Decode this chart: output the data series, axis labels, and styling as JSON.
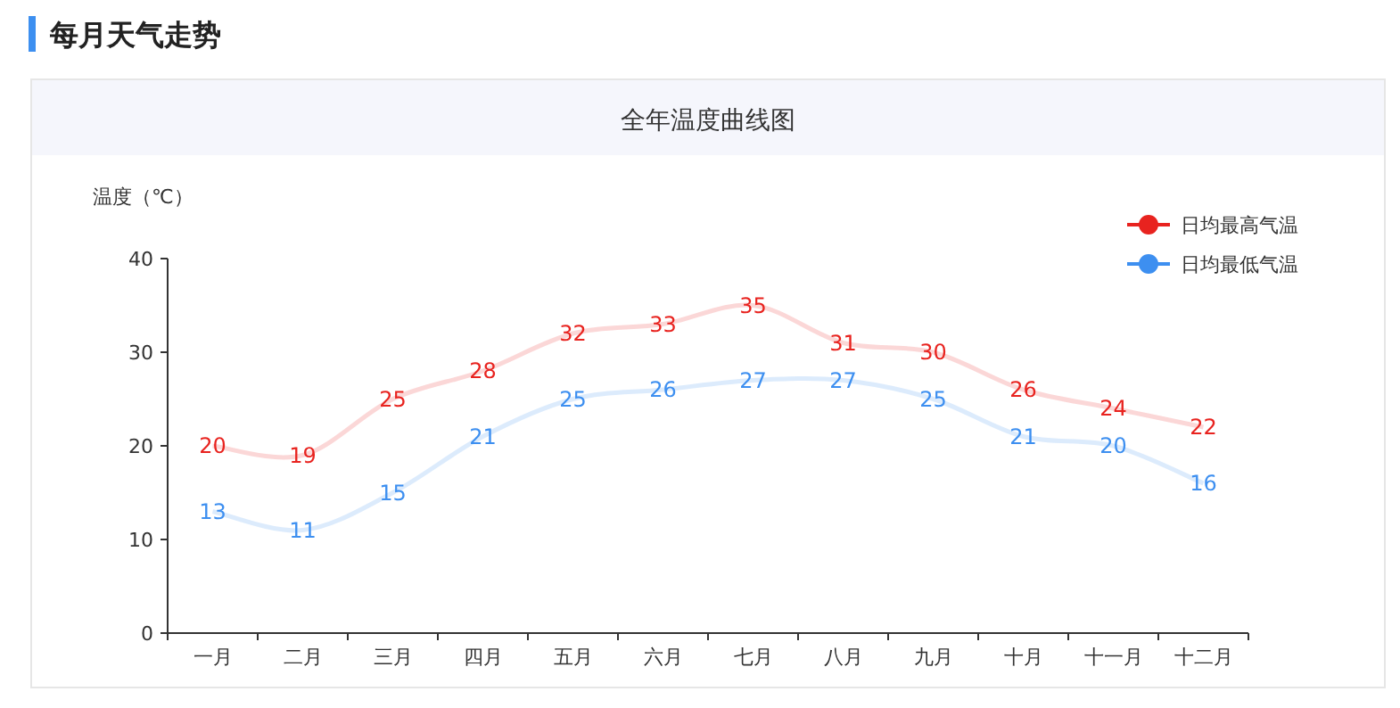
{
  "chart_data": {
    "type": "line",
    "title": "每月天气走势",
    "subtitle": "全年温度曲线图",
    "ylabel": "温度（℃）",
    "categories": [
      "一月",
      "二月",
      "三月",
      "四月",
      "五月",
      "六月",
      "七月",
      "八月",
      "九月",
      "十月",
      "十一月",
      "十二月"
    ],
    "series": [
      {
        "name": "日均最高气温",
        "color": "#e8231f",
        "values": [
          20,
          19,
          25,
          28,
          32,
          33,
          35,
          31,
          30,
          26,
          24,
          22
        ]
      },
      {
        "name": "日均最低气温",
        "color": "#3d8ff0",
        "values": [
          13,
          11,
          15,
          21,
          25,
          26,
          27,
          27,
          25,
          21,
          20,
          16
        ]
      }
    ],
    "ylim": [
      0,
      40
    ],
    "yticks": [
      0,
      10,
      20,
      30,
      40
    ],
    "data_labels": true,
    "legend": "top right",
    "grid": false
  }
}
